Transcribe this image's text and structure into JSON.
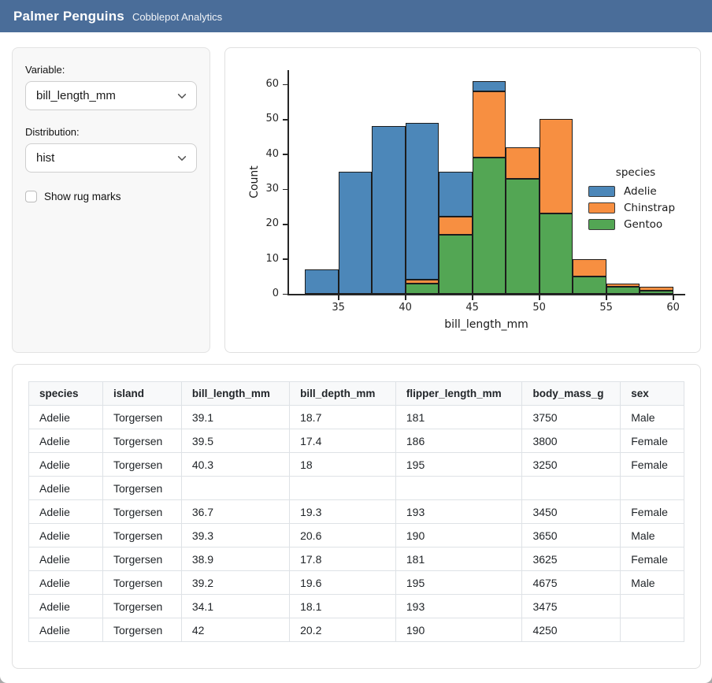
{
  "header": {
    "title": "Palmer Penguins",
    "subtitle": "Cobblepot Analytics"
  },
  "sidebar": {
    "variable_label": "Variable:",
    "variable_value": "bill_length_mm",
    "distribution_label": "Distribution:",
    "distribution_value": "hist",
    "rug_label": "Show rug marks",
    "rug_checked": false
  },
  "chart_data": {
    "type": "bar",
    "subtype": "stacked_histogram",
    "title": "",
    "xlabel": "bill_length_mm",
    "ylabel": "Count",
    "bin_edges": [
      32.5,
      35,
      37.5,
      40,
      42.5,
      45,
      47.5,
      50,
      52.5,
      55,
      57.5,
      60
    ],
    "series": [
      {
        "name": "Adelie",
        "color": "#4c87b9",
        "values": [
          7,
          35,
          48,
          45,
          13,
          3,
          0,
          0,
          0,
          0,
          0
        ]
      },
      {
        "name": "Chinstrap",
        "color": "#f78f41",
        "values": [
          0,
          0,
          0,
          1,
          5,
          19,
          9,
          27,
          5,
          1,
          1
        ]
      },
      {
        "name": "Gentoo",
        "color": "#53a654",
        "values": [
          0,
          0,
          0,
          3,
          17,
          39,
          33,
          23,
          5,
          2,
          1
        ]
      }
    ],
    "stack_order_bottom_to_top": [
      "Gentoo",
      "Chinstrap",
      "Adelie"
    ],
    "bin_totals": [
      7,
      35,
      48,
      49,
      35,
      61,
      42,
      50,
      10,
      3,
      2
    ],
    "legend_title": "species",
    "legend_position": "center right",
    "x_ticks": [
      35,
      40,
      45,
      50,
      55,
      60
    ],
    "y_ticks": [
      0,
      10,
      20,
      30,
      40,
      50,
      60
    ],
    "xlim": [
      31.2,
      60.9
    ],
    "ylim": [
      0,
      64
    ],
    "grid": false,
    "bar_edge_color": "#1c1c1c"
  },
  "table": {
    "columns": [
      "species",
      "island",
      "bill_length_mm",
      "bill_depth_mm",
      "flipper_length_mm",
      "body_mass_g",
      "sex"
    ],
    "rows": [
      [
        "Adelie",
        "Torgersen",
        "39.1",
        "18.7",
        "181",
        "3750",
        "Male"
      ],
      [
        "Adelie",
        "Torgersen",
        "39.5",
        "17.4",
        "186",
        "3800",
        "Female"
      ],
      [
        "Adelie",
        "Torgersen",
        "40.3",
        "18",
        "195",
        "3250",
        "Female"
      ],
      [
        "Adelie",
        "Torgersen",
        "",
        "",
        "",
        "",
        ""
      ],
      [
        "Adelie",
        "Torgersen",
        "36.7",
        "19.3",
        "193",
        "3450",
        "Female"
      ],
      [
        "Adelie",
        "Torgersen",
        "39.3",
        "20.6",
        "190",
        "3650",
        "Male"
      ],
      [
        "Adelie",
        "Torgersen",
        "38.9",
        "17.8",
        "181",
        "3625",
        "Female"
      ],
      [
        "Adelie",
        "Torgersen",
        "39.2",
        "19.6",
        "195",
        "4675",
        "Male"
      ],
      [
        "Adelie",
        "Torgersen",
        "34.1",
        "18.1",
        "193",
        "3475",
        ""
      ],
      [
        "Adelie",
        "Torgersen",
        "42",
        "20.2",
        "190",
        "4250",
        ""
      ]
    ]
  },
  "colors": {
    "header_bg": "#4a6d99"
  }
}
